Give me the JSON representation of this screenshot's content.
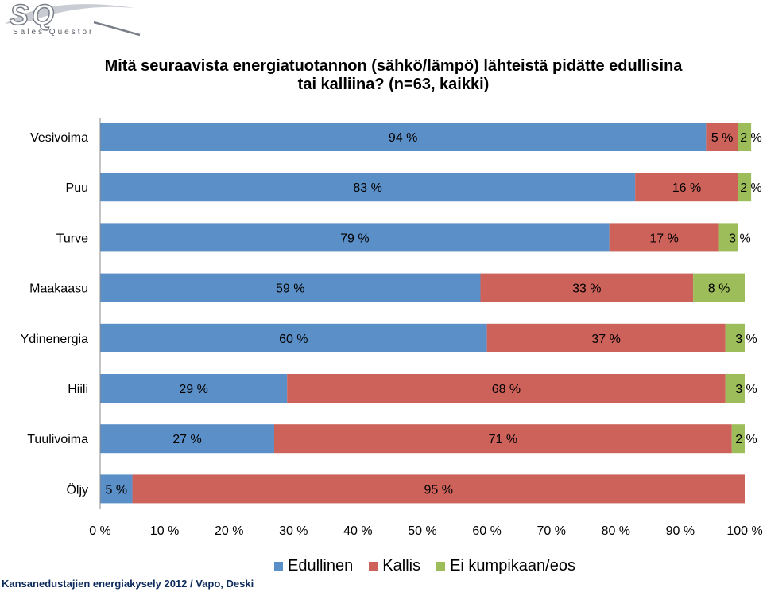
{
  "logo": {
    "mark": "SQ",
    "tagline": "Sales Questor"
  },
  "title_lines": [
    "Mitä seuraavista energiatuotannon (sähkö/lämpö) lähteistä pidätte edullisina",
    "tai kalliina? (n=63, kaikki)"
  ],
  "source": "Kansanedustajien energiakysely 2012 / Vapo, Deski",
  "colors": {
    "edullinen": "#5b8fc7",
    "kallis": "#cc625a",
    "eos": "#9cbd59"
  },
  "chart_data": {
    "type": "bar",
    "orientation": "horizontal",
    "stacked": true,
    "categories": [
      "Vesivoima",
      "Puu",
      "Turve",
      "Maakaasu",
      "Ydinenergia",
      "Hiili",
      "Tuulivoima",
      "Öljy"
    ],
    "series": [
      {
        "name": "Edullinen",
        "values": [
          94,
          83,
          79,
          59,
          60,
          29,
          27,
          5
        ],
        "labels": [
          "94 %",
          "83 %",
          "79 %",
          "59 %",
          "60 %",
          "29 %",
          "27 %",
          "5 %"
        ]
      },
      {
        "name": "Kallis",
        "values": [
          5,
          16,
          17,
          33,
          37,
          68,
          71,
          95
        ],
        "labels": [
          "5 %",
          "16 %",
          "17 %",
          "33 %",
          "37 %",
          "68 %",
          "71 %",
          "95 %"
        ]
      },
      {
        "name": "Ei kumpikaan/eos",
        "values": [
          2,
          2,
          3,
          8,
          3,
          3,
          2,
          0
        ],
        "labels": [
          "2 %",
          "2 %",
          "3 %",
          "8 %",
          "3 %",
          "3 %",
          "2 %",
          ""
        ]
      }
    ],
    "xlim": [
      0,
      100
    ],
    "x_ticks": [
      "0 %",
      "10 %",
      "20 %",
      "30 %",
      "40 %",
      "50 %",
      "60 %",
      "70 %",
      "80 %",
      "90 %",
      "100 %"
    ],
    "legend_position": "bottom",
    "grid": false
  }
}
